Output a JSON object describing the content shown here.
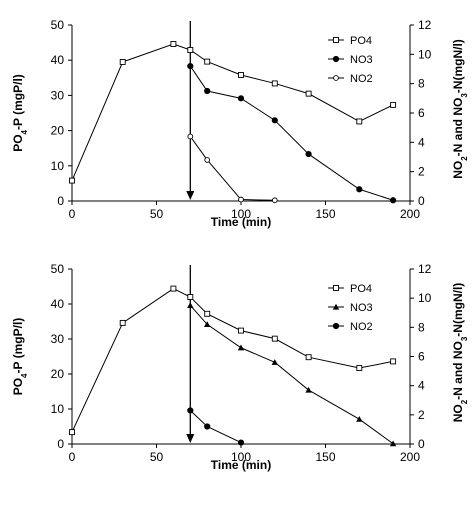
{
  "chart_data": [
    {
      "type": "line",
      "xlabel": "Time (min)",
      "ylabel_left": "PO₄-P (mgP/l)",
      "ylabel_right": "NO₂-N and NO₃-N(mgN/l)",
      "xlim": [
        0,
        200
      ],
      "xticks": [
        "0",
        "50",
        "100",
        "150",
        "200"
      ],
      "ylim_left": [
        0,
        50
      ],
      "yticks_left": [
        "0",
        "10",
        "20",
        "30",
        "40",
        "50"
      ],
      "ylim_right": [
        0,
        12
      ],
      "yticks_right": [
        "0",
        "2",
        "4",
        "6",
        "8",
        "10",
        "12"
      ],
      "arrow_x": 70,
      "legend_position": "top-right",
      "grid": false,
      "series": [
        {
          "name": "PO4",
          "axis": "left",
          "marker": "open-square",
          "x": [
            0,
            30,
            60,
            70,
            80,
            100,
            120,
            140,
            170,
            190
          ],
          "y": [
            5.8,
            39.5,
            44.6,
            42.9,
            39.6,
            35.8,
            33.4,
            30.5,
            22.6,
            27.3
          ]
        },
        {
          "name": "NO3",
          "axis": "right",
          "marker": "filled-circle",
          "x": [
            70,
            80,
            100,
            120,
            140,
            170,
            190
          ],
          "y": [
            9.2,
            7.5,
            7.0,
            5.5,
            3.2,
            0.8,
            0.05
          ]
        },
        {
          "name": "NO2",
          "axis": "right",
          "marker": "open-circle",
          "x": [
            70,
            80,
            100,
            120
          ],
          "y": [
            4.4,
            2.8,
            0.1,
            0.05
          ]
        }
      ]
    },
    {
      "type": "line",
      "xlabel": "Time (min)",
      "ylabel_left": "PO₄-P (mgP/l)",
      "ylabel_right": "NO₂-N and NO₃-N(mgN/l)",
      "xlim": [
        0,
        200
      ],
      "xticks": [
        "0",
        "50",
        "100",
        "150",
        "200"
      ],
      "ylim_left": [
        0,
        50
      ],
      "yticks_left": [
        "0",
        "10",
        "20",
        "30",
        "40",
        "50"
      ],
      "ylim_right": [
        0,
        12
      ],
      "yticks_right": [
        "0",
        "2",
        "4",
        "6",
        "8",
        "10",
        "12"
      ],
      "arrow_x": 70,
      "legend_position": "top-right",
      "grid": false,
      "series": [
        {
          "name": "PO4",
          "axis": "left",
          "marker": "open-square",
          "x": [
            0,
            30,
            60,
            70,
            80,
            100,
            120,
            140,
            170,
            190
          ],
          "y": [
            3.4,
            34.6,
            44.4,
            42.0,
            37.2,
            32.4,
            30.1,
            24.8,
            21.7,
            23.6
          ]
        },
        {
          "name": "NO3",
          "axis": "right",
          "marker": "filled-triangle",
          "x": [
            70,
            80,
            100,
            120,
            140,
            170,
            190
          ],
          "y": [
            9.5,
            8.2,
            6.6,
            5.6,
            3.7,
            1.7,
            0.02
          ]
        },
        {
          "name": "NO2",
          "axis": "right",
          "marker": "filled-circle",
          "x": [
            70,
            80,
            100
          ],
          "y": [
            2.3,
            1.2,
            0.1
          ]
        }
      ]
    }
  ]
}
